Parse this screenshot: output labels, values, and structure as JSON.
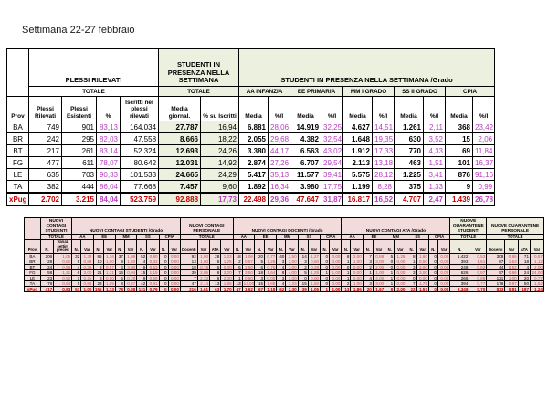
{
  "page": {
    "title": "Settimana 22-27 febbraio"
  },
  "presence_table": {
    "groups": [
      {
        "label": "PLESSI RILEVATI",
        "span": 4,
        "kind": "white"
      },
      {
        "label": "STUDENTI IN PRESENZA NELLA SETTIMANA",
        "span": 2,
        "kind": "green"
      },
      {
        "label": "STUDENTI IN PRESENZA NELLA SETTIMANA /Grado",
        "span": 10,
        "kind": "green"
      }
    ],
    "subgroups": [
      {
        "label": "TOTALE",
        "span": 4,
        "kind": "white"
      },
      {
        "label": "TOTALE",
        "span": 2,
        "kind": "green"
      },
      {
        "label": "AA INFANZIA",
        "span": 2,
        "kind": "green"
      },
      {
        "label": "EE PRIMARIA",
        "span": 2,
        "kind": "green"
      },
      {
        "label": "MM I GRADO",
        "span": 2,
        "kind": "green"
      },
      {
        "label": "SS II GRADO",
        "span": 2,
        "kind": "green"
      },
      {
        "label": "CPIA",
        "span": 2,
        "kind": "green"
      }
    ],
    "col_headers": [
      "Prov",
      "Plessi Rilevati",
      "Plessi Esistenti",
      "%",
      "Iscritti nei plessi rilevati",
      "Media giornal.",
      "% su Iscritti",
      "Media",
      "%/I",
      "Media",
      "%/I",
      "Media",
      "%/I",
      "Media",
      "%/I",
      "Media",
      "%/I"
    ],
    "rows": [
      [
        "BA",
        "749",
        "901",
        "83,13",
        "164.034",
        "27.787",
        "16,94",
        "6.881",
        "28,06",
        "14.919",
        "32,25",
        "4.627",
        "14,51",
        "1.261",
        "2,11",
        "368",
        "23,42"
      ],
      [
        "BR",
        "242",
        "295",
        "82,03",
        "47.558",
        "8.666",
        "18,22",
        "2.055",
        "29,68",
        "4.382",
        "32,54",
        "1.648",
        "19,35",
        "630",
        "3,52",
        "15",
        "2,06"
      ],
      [
        "BT",
        "217",
        "261",
        "83,14",
        "52.324",
        "12.693",
        "24,26",
        "3.380",
        "44,17",
        "6.563",
        "43,02",
        "1.912",
        "17,33",
        "770",
        "4,33",
        "69",
        "11,84"
      ],
      [
        "FG",
        "477",
        "611",
        "78,07",
        "80.642",
        "12.031",
        "14,92",
        "2.874",
        "27,26",
        "6.707",
        "29,54",
        "2.113",
        "13,18",
        "463",
        "1,51",
        "101",
        "16,37"
      ],
      [
        "LE",
        "635",
        "703",
        "90,33",
        "101.533",
        "24.665",
        "24,29",
        "5.417",
        "35,13",
        "11.577",
        "39,41",
        "5.575",
        "28,12",
        "1.225",
        "3,41",
        "876",
        "91,16"
      ],
      [
        "TA",
        "382",
        "444",
        "86,04",
        "77.668",
        "7.457",
        "9,60",
        "1.892",
        "16,34",
        "3.980",
        "17,75",
        "1.199",
        "8,28",
        "375",
        "1,33",
        "9",
        "0,99"
      ],
      [
        "xPug",
        "2.702",
        "3.215",
        "84,04",
        "523.759",
        "92.888",
        "17,73",
        "22.498",
        "29,36",
        "47.647",
        "31,87",
        "16.817",
        "16,52",
        "4.707",
        "2,47",
        "1.439",
        "26,78"
      ]
    ]
  },
  "contagi_table": {
    "groups": [
      {
        "label": "NUOVI CONTAGI STUDENTI",
        "span": 2,
        "kind": "pink"
      },
      {
        "label": "NUOVI CONTAGI STUDENTI /Grado",
        "span": 10,
        "kind": "pink"
      },
      {
        "label": "NUOVI CONTAGI PERSONALE",
        "span": 4,
        "kind": "pink"
      },
      {
        "label": "NUOVI CONTAGI DOCENTI /Grado",
        "span": 10,
        "kind": "pink"
      },
      {
        "label": "NUOVI CONTAGI ATA /Grado",
        "span": 10,
        "kind": "pink"
      },
      {
        "label": "NUOVE QUARANTENE STUDENTI",
        "span": 2,
        "kind": "cream"
      },
      {
        "label": "NUOVE QUARANTENE PERSONALE",
        "span": 4,
        "kind": "cream"
      }
    ],
    "subgroups": [
      {
        "label": "TOTALE",
        "span": 2,
        "kind": "pink"
      },
      {
        "label": "AA",
        "span": 2,
        "kind": "pink"
      },
      {
        "label": "EE",
        "span": 2,
        "kind": "pink"
      },
      {
        "label": "MM",
        "span": 2,
        "kind": "pink"
      },
      {
        "label": "SS",
        "span": 2,
        "kind": "pink"
      },
      {
        "label": "CPIA",
        "span": 2,
        "kind": "pink"
      },
      {
        "label": "TOTALE",
        "span": 4,
        "kind": "pink"
      },
      {
        "label": "AA",
        "span": 2,
        "kind": "pink"
      },
      {
        "label": "EE",
        "span": 2,
        "kind": "pink"
      },
      {
        "label": "MM",
        "span": 2,
        "kind": "pink"
      },
      {
        "label": "SS",
        "span": 2,
        "kind": "pink"
      },
      {
        "label": "CPIA",
        "span": 2,
        "kind": "pink"
      },
      {
        "label": "AA",
        "span": 2,
        "kind": "pink"
      },
      {
        "label": "EE",
        "span": 2,
        "kind": "pink"
      },
      {
        "label": "MM",
        "span": 2,
        "kind": "pink"
      },
      {
        "label": "SS",
        "span": 2,
        "kind": "pink"
      },
      {
        "label": "CPIA",
        "span": 2,
        "kind": "pink"
      },
      {
        "label": "TOTALE",
        "span": 2,
        "kind": "cream"
      },
      {
        "label": "TOTALE",
        "span": 4,
        "kind": "cream"
      }
    ],
    "col_headers": [
      "Prov",
      "N.",
      "Variaz settim preced",
      "N.",
      "Var",
      "N.",
      "Var",
      "N.",
      "Var",
      "N.",
      "Var",
      "N.",
      "Var",
      "Docenti",
      "Var",
      "ATA",
      "Var",
      "N.",
      "Var",
      "N.",
      "Var",
      "N.",
      "Var",
      "N.",
      "Var",
      "N.",
      "Var",
      "N.",
      "Var",
      "N.",
      "Var",
      "N.",
      "Var",
      "N.",
      "Var",
      "N.",
      "Var",
      "N.",
      "Var",
      "Docenti",
      "Var",
      "ATA",
      "Var"
    ],
    "rows": [
      [
        "BA",
        "206",
        "1,05",
        "32",
        "1,33",
        "85",
        "1,16",
        "37",
        "1,09",
        "52",
        "0,80",
        "0",
        "0,00",
        "92",
        "1,90",
        "28",
        "1,33",
        "18",
        "1,06",
        "20",
        "0,77",
        "40",
        "2,50",
        "14",
        "1,27",
        "0",
        "0,00",
        "8",
        "2,00",
        "7",
        "0,88",
        "5",
        "1,25",
        "8",
        "1,60",
        "0",
        "0,00",
        "1.422",
        "0,53",
        "308",
        "0,86",
        "71",
        "0,57"
      ],
      [
        "BR",
        "28",
        "0,82",
        "5",
        "0,83",
        "10",
        "1,00",
        "9",
        "1,50",
        "4",
        "0,33",
        "0",
        "0,00",
        "13",
        "1,00",
        "5",
        "1,25",
        "2",
        "0,67",
        "5",
        "1,25",
        "3",
        "3,00",
        "3",
        "0,60",
        "0",
        "0,00",
        "1",
        "1,00",
        "3",
        "3,00",
        "0",
        "0,00",
        "1",
        "0,50",
        "0",
        "0,00",
        "393",
        "1,51",
        "87",
        "1,53",
        "18",
        "1,12"
      ],
      [
        "BT",
        "24",
        "0,56",
        "4",
        "0,36",
        "8",
        "0,57",
        "3",
        "3,00",
        "9",
        "0,53",
        "0",
        "0,00",
        "18",
        "0,78",
        "5",
        "0,00",
        "6",
        "1,50",
        "6",
        "0,75",
        "4",
        "1,00",
        "2",
        "0,29",
        "0",
        "0,00",
        "0",
        "0,00",
        "2",
        "2,00",
        "0",
        "0,00",
        "3",
        "3,00",
        "0",
        "0,00",
        "248",
        "0,62",
        "44",
        "0,52",
        "4",
        "2,00"
      ],
      [
        "FG",
        "58",
        "1,21",
        "6",
        "3,00",
        "21",
        "1,31",
        "16",
        "0,94",
        "15",
        "1,15",
        "0",
        "0,00",
        "39",
        "2,05",
        "6",
        "3,00",
        "7",
        "3,50",
        "18",
        "1,64",
        "8",
        "4,00",
        "5",
        "1,25",
        "1",
        "1,00",
        "1",
        "0,00",
        "1",
        "1,00",
        "1",
        "0,00",
        "3",
        "3,00",
        "0",
        "0,00",
        "626",
        "0,97",
        "97",
        "0,86",
        "24",
        "24,00"
      ],
      [
        "LE",
        "23",
        "0,52",
        "1",
        "0,25",
        "8",
        "0,80",
        "5",
        "0,29",
        "9",
        "0,69",
        "0",
        "0,00",
        "7",
        "2,33",
        "6",
        "2,00",
        "1",
        "0,50",
        "3",
        "0,00",
        "3",
        "3,00",
        "0",
        "0,00",
        "0",
        "0,00",
        "1",
        "0,00",
        "4",
        "4,00",
        "1",
        "0,00",
        "0",
        "0,00",
        "0",
        "0,00",
        "266",
        "0,88",
        "121",
        "1,00",
        "20",
        "0,77"
      ],
      [
        "TA",
        "78",
        "0,94",
        "5",
        "0,83",
        "23",
        "1,05",
        "8",
        "0,57",
        "42",
        "0,91",
        "0",
        "0,00",
        "47",
        "2,14",
        "13",
        "1,86",
        "13",
        "13,00",
        "15",
        "1,88",
        "4",
        "1,33",
        "15",
        "1,50",
        "0",
        "0,00",
        "2",
        "1,00",
        "3",
        "3,00",
        "1",
        "0,00",
        "7",
        "1,75",
        "0",
        "0,00",
        "394",
        "0,77",
        "176",
        "0,97",
        "50",
        "1,52"
      ],
      [
        "xPug",
        "417",
        "0,93",
        "53",
        "1,00",
        "155",
        "1,13",
        "78",
        "0,88",
        "131",
        "0,79",
        "0",
        "0,00",
        "216",
        "1,61",
        "63",
        "1,70",
        "47",
        "1,62",
        "67",
        "1,18",
        "62",
        "2,30",
        "39",
        "1,05",
        "1",
        "1,00",
        "13",
        "1,86",
        "20",
        "1,67",
        "8",
        "2,00",
        "22",
        "1,57",
        "0",
        "0,00",
        "3.349",
        "0,70",
        "833",
        "0,81",
        "187",
        "1,24"
      ]
    ]
  }
}
